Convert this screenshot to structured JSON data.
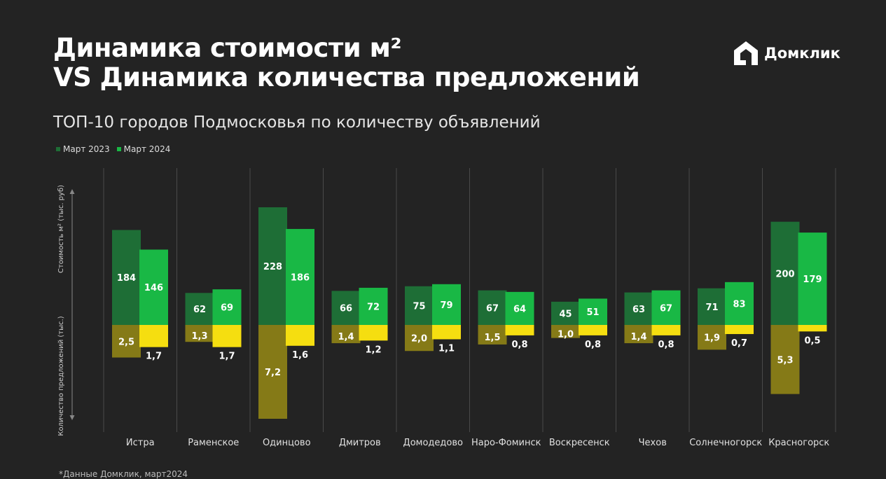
{
  "header": {
    "title_line1": "Динамика стоимости м²",
    "title_line2": "VS Динамика количества предложений",
    "subtitle": "ТОП-10 городов Подмосковья по количеству объявлений",
    "logo_text": "Домклик"
  },
  "legend": [
    {
      "label": "Март 2023",
      "color": "#1e6e36"
    },
    {
      "label": "Март 2024",
      "color": "#19b845"
    }
  ],
  "footnote": "*Данные Домклик, март2024",
  "colors": {
    "price_2023": "#1e6e36",
    "price_2024": "#19b845",
    "count_2023": "#857a17",
    "count_2024": "#f5de10",
    "divider": "#4a4a4a",
    "axis": "#888888"
  },
  "chart_data": {
    "type": "bar",
    "categories": [
      "Истра",
      "Раменское",
      "Одинцово",
      "Дмитров",
      "Домодедово",
      "Наро-Фоминск",
      "Воскресенск",
      "Чехов",
      "Солнечногорск",
      "Красногорск"
    ],
    "series": [
      {
        "name": "Март 2023",
        "metric": "price",
        "values": [
          184,
          62,
          228,
          66,
          75,
          67,
          45,
          63,
          71,
          200
        ],
        "labels": [
          "184",
          "62",
          "228",
          "66",
          "75",
          "67",
          "45",
          "63",
          "71",
          "200"
        ]
      },
      {
        "name": "Март 2024",
        "metric": "price",
        "values": [
          146,
          69,
          186,
          72,
          79,
          64,
          51,
          67,
          83,
          179
        ],
        "labels": [
          "146",
          "69",
          "186",
          "72",
          "79",
          "64",
          "51",
          "67",
          "83",
          "179"
        ]
      },
      {
        "name": "Март 2023",
        "metric": "count",
        "values": [
          2.5,
          1.3,
          7.2,
          1.4,
          2.0,
          1.5,
          1.0,
          1.4,
          1.9,
          5.3
        ],
        "labels": [
          "2,5",
          "1,3",
          "7,2",
          "1,4",
          "2,0",
          "1,5",
          "1,0",
          "1,4",
          "1,9",
          "5,3"
        ]
      },
      {
        "name": "Март 2024",
        "metric": "count",
        "values": [
          1.7,
          1.7,
          1.6,
          1.2,
          1.1,
          0.8,
          0.8,
          0.8,
          0.7,
          0.5
        ],
        "labels": [
          "1,7",
          "1,7",
          "1,6",
          "1,2",
          "1,1",
          "0,8",
          "0,8",
          "0,8",
          "0,7",
          "0,5"
        ]
      }
    ],
    "ylabel_top": "Стоимость м² (тыс. руб)",
    "ylabel_bottom": "Количество предложений (тыс.)",
    "grid": false,
    "legend_position": "top-left"
  }
}
